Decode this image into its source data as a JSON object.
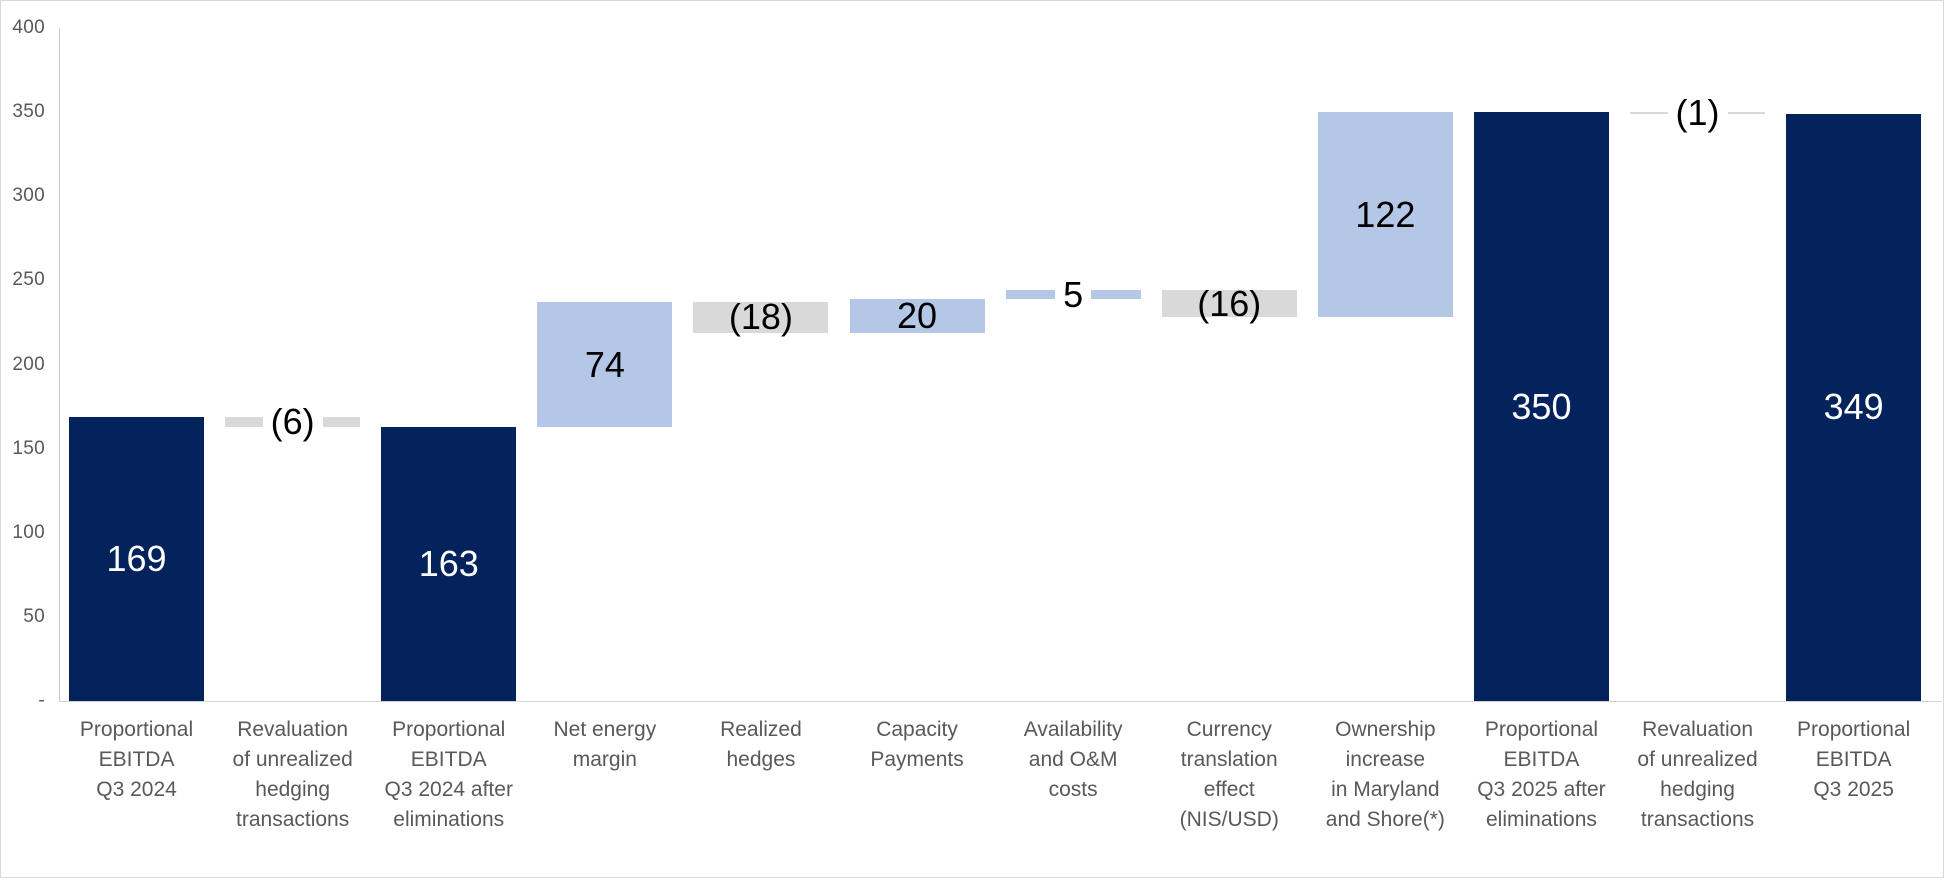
{
  "chart_data": {
    "type": "bar",
    "subtype": "waterfall",
    "title": "",
    "xlabel": "",
    "ylabel": "",
    "ylim": [
      0,
      400
    ],
    "grid": "off",
    "legend": "none",
    "y_ticks": [
      {
        "value": 400,
        "label": "400"
      },
      {
        "value": 350,
        "label": "350"
      },
      {
        "value": 300,
        "label": "300"
      },
      {
        "value": 250,
        "label": "250"
      },
      {
        "value": 200,
        "label": "200"
      },
      {
        "value": 150,
        "label": "150"
      },
      {
        "value": 100,
        "label": "100"
      },
      {
        "value": 50,
        "label": "50"
      },
      {
        "value": 0,
        "label": "-"
      }
    ],
    "colors": {
      "total": "#04225c",
      "increase": "#b4c7e7",
      "decrease": "#d9d9d9",
      "value_label_on_total": "#ffffff",
      "value_label_on_delta": "#000000",
      "axis": "#c9c9c9",
      "tick_text": "#595959",
      "category_text": "#595959"
    },
    "categories": [
      {
        "label": "Proportional\nEBITDA\nQ3 2024",
        "value": 169,
        "display": "169",
        "start": 0,
        "end": 169,
        "type": "total"
      },
      {
        "label": "Revaluation\nof unrealized\nhedging\ntransactions",
        "value": -6,
        "display": "(6)",
        "start": 169,
        "end": 163,
        "type": "decrease"
      },
      {
        "label": "Proportional\nEBITDA\nQ3 2024 after\neliminations",
        "value": 163,
        "display": "163",
        "start": 0,
        "end": 163,
        "type": "total"
      },
      {
        "label": "Net energy\nmargin",
        "value": 74,
        "display": "74",
        "start": 163,
        "end": 237,
        "type": "increase"
      },
      {
        "label": "Realized\nhedges",
        "value": -18,
        "display": "(18)",
        "start": 237,
        "end": 219,
        "type": "decrease"
      },
      {
        "label": "Capacity\nPayments",
        "value": 20,
        "display": "20",
        "start": 219,
        "end": 239,
        "type": "increase"
      },
      {
        "label": "Availability\nand O&M\ncosts",
        "value": 5,
        "display": "5",
        "start": 239,
        "end": 244,
        "type": "increase"
      },
      {
        "label": "Currency\ntranslation\neffect\n(NIS/USD)",
        "value": -16,
        "display": "(16)",
        "start": 244,
        "end": 228,
        "type": "decrease"
      },
      {
        "label": "Ownership\nincrease\nin Maryland\nand Shore(*)",
        "value": 122,
        "display": "122",
        "start": 228,
        "end": 350,
        "type": "increase"
      },
      {
        "label": "Proportional\nEBITDA\nQ3 2025 after\neliminations",
        "value": 350,
        "display": "350",
        "start": 0,
        "end": 350,
        "type": "total"
      },
      {
        "label": "Revaluation\nof unrealized\nhedging\ntransactions",
        "value": -1,
        "display": "(1)",
        "start": 350,
        "end": 349,
        "type": "decrease"
      },
      {
        "label": "Proportional\nEBITDA\nQ3 2025",
        "value": 349,
        "display": "349",
        "start": 0,
        "end": 349,
        "type": "total"
      }
    ]
  }
}
